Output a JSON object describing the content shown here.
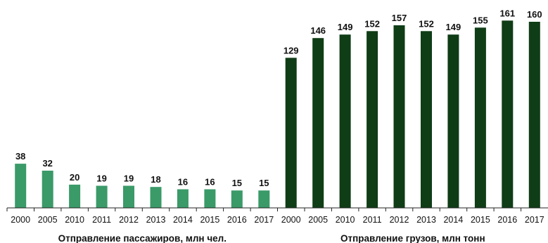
{
  "chart_data": {
    "type": "bar",
    "ylim": [
      0,
      160
    ],
    "grid": false,
    "colors": {
      "passengers": "#3a9a68",
      "cargo": "#0f3d16",
      "axis": "#222222"
    },
    "groups": [
      {
        "key": "passengers",
        "label": "Отправление пассажиров, млн чел.",
        "categories": [
          "2000",
          "2005",
          "2010",
          "2011",
          "2012",
          "2013",
          "2014",
          "2015",
          "2016",
          "2017"
        ],
        "values": [
          38,
          32,
          20,
          19,
          19,
          18,
          16,
          16,
          15,
          15
        ]
      },
      {
        "key": "cargo",
        "label": "Отправление грузов, млн тонн",
        "categories": [
          "2000",
          "2005",
          "2010",
          "2011",
          "2012",
          "2013",
          "2014",
          "2015",
          "2016",
          "2017"
        ],
        "values": [
          129,
          146,
          149,
          152,
          157,
          152,
          149,
          155,
          161,
          160
        ]
      }
    ]
  }
}
